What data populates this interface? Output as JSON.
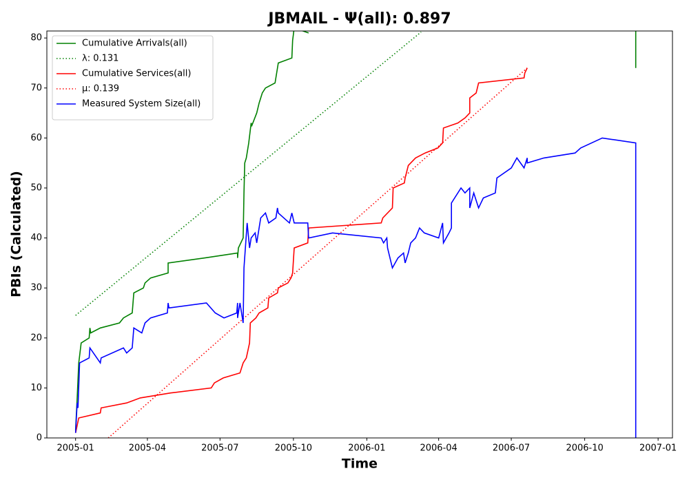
{
  "chart_data": {
    "type": "line",
    "title": "JBMAIL -  Ψ(all): 0.897",
    "xlabel": "Time",
    "ylabel": "PBIs (Calculated)",
    "xlim": [
      "2004-11-26",
      "2007-01-19"
    ],
    "xticks": [
      "2005-01",
      "2005-04",
      "2005-07",
      "2005-10",
      "2006-01",
      "2006-04",
      "2006-07",
      "2006-10",
      "2007-01"
    ],
    "ylim": [
      0,
      81.4
    ],
    "yticks": [
      0,
      10,
      20,
      30,
      40,
      50,
      60,
      70,
      80
    ],
    "legend": "upper left",
    "series": [
      {
        "name": "Cumulative Arrivals(all)",
        "color": "#008000",
        "linestyle": "solid",
        "x": [
          "2005-01-01",
          "2005-01-03",
          "2005-01-05",
          "2005-01-08",
          "2005-01-18",
          "2005-01-19",
          "2005-01-20",
          "2005-02-01",
          "2005-02-25",
          "2005-03-02",
          "2005-03-13",
          "2005-03-15",
          "2005-03-27",
          "2005-03-29",
          "2005-04-05",
          "2005-04-27",
          "2005-04-27",
          "2005-06-12",
          "2005-07-23",
          "2005-07-23",
          "2005-07-24",
          "2005-07-30",
          "2005-07-31",
          "2005-08-01",
          "2005-08-03",
          "2005-08-06",
          "2005-08-09",
          "2005-08-10",
          "2005-08-16",
          "2005-08-19",
          "2005-08-23",
          "2005-08-27",
          "2005-09-08",
          "2005-09-12",
          "2005-09-29",
          "2005-09-30",
          "2005-10-02",
          "2005-10-20",
          "2006-06-01",
          "2006-12-04",
          "2006-12-04"
        ],
        "values": [
          1.5,
          8,
          15,
          19,
          20,
          22,
          21,
          22,
          23,
          24,
          25,
          29,
          30,
          31,
          32,
          33,
          35,
          36,
          37,
          36,
          38,
          40,
          49,
          55,
          56,
          59,
          63,
          62.5,
          65,
          67,
          69,
          70,
          71,
          75,
          76,
          79.5,
          82,
          81,
          null,
          82,
          74
        ]
      },
      {
        "name": "λ: 0.131",
        "color": "#008000",
        "linestyle": "dotted",
        "x": [
          "2005-01-01",
          "2006-03-10"
        ],
        "values": [
          24.5,
          81.2
        ]
      },
      {
        "name": "Cumulative Services(all)",
        "color": "#ff0000",
        "linestyle": "solid",
        "x": [
          "2005-01-01",
          "2005-01-03",
          "2005-01-05",
          "2005-02-01",
          "2005-02-02",
          "2005-03-06",
          "2005-03-23",
          "2005-04-30",
          "2005-06-20",
          "2005-06-24",
          "2005-07-05",
          "2005-07-26",
          "2005-07-30",
          "2005-08-03",
          "2005-08-07",
          "2005-08-08",
          "2005-08-15",
          "2005-08-19",
          "2005-08-30",
          "2005-08-31",
          "2005-09-11",
          "2005-09-12",
          "2005-09-24",
          "2005-09-28",
          "2005-09-30",
          "2005-10-02",
          "2005-10-19",
          "2005-10-20",
          "2006-01-19",
          "2006-01-21",
          "2006-02-02",
          "2006-02-03",
          "2006-02-17",
          "2006-02-18",
          "2006-02-22",
          "2006-03-03",
          "2006-03-15",
          "2006-03-31",
          "2006-04-06",
          "2006-04-07",
          "2006-04-25",
          "2006-05-04",
          "2006-05-10",
          "2006-05-10",
          "2006-05-18",
          "2006-05-21",
          "2006-07-17",
          "2006-07-18",
          "2006-07-21"
        ],
        "values": [
          1,
          2.5,
          4,
          5,
          6,
          7,
          8,
          9,
          10,
          11,
          12,
          13,
          15,
          16,
          19,
          23,
          24,
          25,
          26,
          28,
          29,
          30,
          31,
          32,
          33,
          38,
          39,
          42,
          43,
          44,
          46,
          50,
          51,
          52,
          54.5,
          56,
          57,
          58,
          59,
          62,
          63,
          64,
          65,
          68,
          69,
          71,
          72,
          73,
          74
        ]
      },
      {
        "name": "μ: 0.139",
        "color": "#ff0000",
        "linestyle": "dotted",
        "x": [
          "2005-02-11",
          "2006-07-21"
        ],
        "values": [
          0,
          74
        ]
      },
      {
        "name": "Measured System Size(all)",
        "color": "#0000ff",
        "linestyle": "solid",
        "x": [
          "2005-01-01",
          "2005-01-03",
          "2005-01-04",
          "2005-01-06",
          "2005-01-18",
          "2005-01-19",
          "2005-02-01",
          "2005-02-02",
          "2005-03-02",
          "2005-03-06",
          "2005-03-13",
          "2005-03-15",
          "2005-03-25",
          "2005-03-29",
          "2005-04-05",
          "2005-04-26",
          "2005-04-27",
          "2005-04-28",
          "2005-06-14",
          "2005-06-25",
          "2005-07-06",
          "2005-07-22",
          "2005-07-23",
          "2005-07-23",
          "2005-07-26",
          "2005-07-30",
          "2005-07-31",
          "2005-08-04",
          "2005-08-07",
          "2005-08-09",
          "2005-08-14",
          "2005-08-16",
          "2005-08-21",
          "2005-08-27",
          "2005-08-31",
          "2005-09-09",
          "2005-09-11",
          "2005-09-12",
          "2005-09-26",
          "2005-09-29",
          "2005-10-02",
          "2005-10-19",
          "2005-10-20",
          "2005-11-19",
          "2006-01-19",
          "2006-01-22",
          "2006-01-26",
          "2006-01-27",
          "2006-02-02",
          "2006-02-09",
          "2006-02-16",
          "2006-02-18",
          "2006-02-22",
          "2006-02-25",
          "2006-03-03",
          "2006-03-08",
          "2006-03-14",
          "2006-04-01",
          "2006-04-06",
          "2006-04-07",
          "2006-04-14",
          "2006-04-17",
          "2006-04-17",
          "2006-04-29",
          "2006-05-04",
          "2006-05-10",
          "2006-05-10",
          "2006-05-15",
          "2006-05-21",
          "2006-05-27",
          "2006-06-11",
          "2006-06-13",
          "2006-07-01",
          "2006-07-08",
          "2006-07-17",
          "2006-07-21",
          "2006-07-21",
          "2006-08-11",
          "2006-09-19",
          "2006-09-26",
          "2006-10-23",
          "2006-12-04",
          "2006-12-04"
        ],
        "values": [
          1,
          7,
          6,
          15,
          16,
          18,
          15,
          16,
          18,
          17,
          18,
          22,
          21,
          23,
          24,
          25,
          27,
          26,
          27,
          25,
          24,
          25,
          27,
          24,
          27,
          23,
          34,
          43,
          38,
          40,
          41,
          39,
          44,
          45,
          43,
          44,
          46,
          45,
          43,
          45,
          43,
          43,
          40,
          41,
          40,
          39,
          40,
          38,
          34,
          36,
          37,
          35,
          37,
          39,
          40,
          42,
          41,
          40,
          43,
          39,
          41,
          42,
          47,
          50,
          49,
          50,
          46,
          49,
          46,
          48,
          49,
          52,
          54,
          56,
          54,
          56,
          55,
          56,
          57,
          58,
          60,
          59,
          0
        ]
      }
    ]
  }
}
